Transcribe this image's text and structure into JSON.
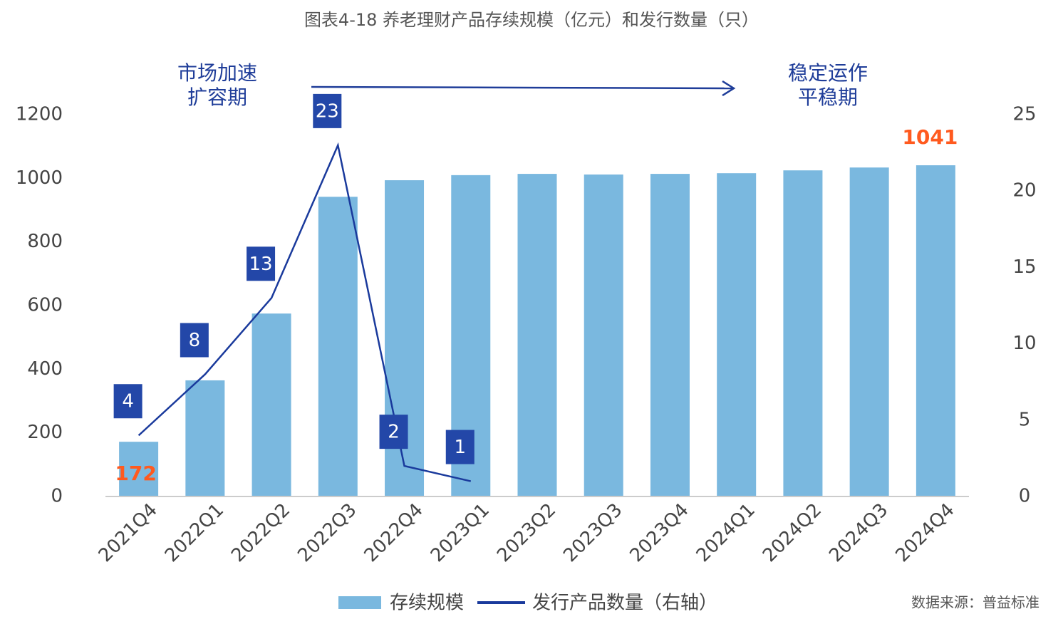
{
  "chart_data": {
    "type": "bar_line",
    "title": "图表4-18 养老理财产品存续规模（亿元）和发行数量（只）",
    "categories": [
      "2021Q4",
      "2022Q1",
      "2022Q2",
      "2022Q3",
      "2022Q4",
      "2023Q1",
      "2023Q2",
      "2023Q3",
      "2023Q4",
      "2024Q1",
      "2024Q2",
      "2024Q3",
      "2024Q4"
    ],
    "series": [
      {
        "name": "存续规模",
        "type": "bar",
        "color": "#7ab8df",
        "values": [
          172,
          365,
          575,
          942,
          994,
          1010,
          1014,
          1012,
          1014,
          1016,
          1025,
          1034,
          1041
        ]
      },
      {
        "name": "发行产品数量（右轴）",
        "type": "line",
        "axis": "y2",
        "color": "#1a3a9c",
        "values": [
          4,
          8,
          13,
          23,
          2,
          1,
          null,
          null,
          null,
          null,
          null,
          null,
          null
        ]
      }
    ],
    "ylim": [
      0,
      1200
    ],
    "yticks": [
      0,
      200,
      400,
      600,
      800,
      1000,
      1200
    ],
    "y2lim": [
      0,
      25
    ],
    "y2ticks": [
      0,
      5,
      10,
      15,
      20,
      25
    ],
    "annotations": [
      [
        "市场加速",
        "扩容期"
      ],
      [
        "稳定运作",
        "平稳期"
      ]
    ],
    "source": "数据来源：普益标准"
  }
}
